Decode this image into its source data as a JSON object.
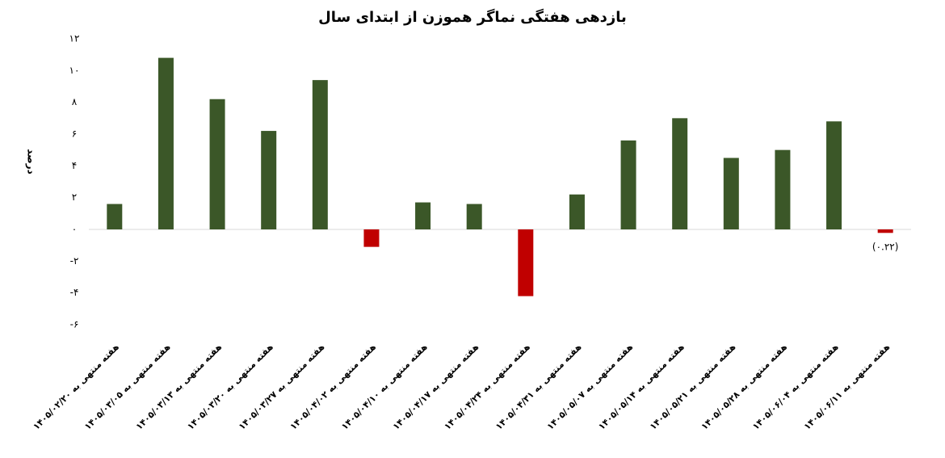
{
  "chart_data": {
    "type": "bar",
    "title": "بازدهی هفتگی نماگر هموزن از ابتدای سال",
    "y_label": "درصد",
    "categories": [
      "هفته منتهی به ۱۴۰۵/۰۲/۲۰",
      "هفته منتهی به ۱۴۰۵/۰۳/۰۵",
      "هفته منتهی به ۱۴۰۵/۰۳/۱۳",
      "هفته منتهی به ۱۴۰۵/۰۳/۲۰",
      "هفته منتهی به ۱۴۰۵/۰۳/۲۷",
      "هفته منتهی به ۱۴۰۵/۰۴/۰۲",
      "هفته منتهی به ۱۴۰۵/۰۴/۱۰",
      "هفته منتهی به ۱۴۰۵/۰۴/۱۷",
      "هفته منتهی به ۱۴۰۵/۰۴/۲۴",
      "هفته منتهی به ۱۴۰۵/۰۴/۳۱",
      "هفته منتهی به ۱۴۰۵/۰۵/۰۷",
      "هفته منتهی به ۱۴۰۵/۰۵/۱۴",
      "هفته منتهی به ۱۴۰۵/۰۵/۲۱",
      "هفته منتهی به ۱۴۰۵/۰۵/۲۸",
      "هفته منتهی به ۱۴۰۵/۰۶/۰۴",
      "هفته منتهی به ۱۴۰۵/۰۶/۱۱"
    ],
    "values": [
      1.6,
      10.8,
      8.2,
      6.2,
      9.4,
      -1.1,
      1.7,
      1.6,
      -4.2,
      2.2,
      5.6,
      7.0,
      4.5,
      5.0,
      6.8,
      -0.22
    ],
    "colors": [
      "#3b5728",
      "#3b5728",
      "#3b5728",
      "#3b5728",
      "#3b5728",
      "#c00000",
      "#3b5728",
      "#3b5728",
      "#c00000",
      "#3b5728",
      "#3b5728",
      "#3b5728",
      "#3b5728",
      "#3b5728",
      "#3b5728",
      "#c00000"
    ],
    "value_labels": [
      null,
      null,
      null,
      null,
      null,
      null,
      null,
      null,
      null,
      null,
      null,
      null,
      null,
      null,
      null,
      "(۰.۲۲)"
    ],
    "ylim": [
      -6,
      12
    ],
    "yticks": [
      {
        "value": -6,
        "label": "-۶"
      },
      {
        "value": -4,
        "label": "-۴"
      },
      {
        "value": -2,
        "label": "-۲"
      },
      {
        "value": 0,
        "label": "۰"
      },
      {
        "value": 2,
        "label": "۲"
      },
      {
        "value": 4,
        "label": "۴"
      },
      {
        "value": 6,
        "label": "۶"
      },
      {
        "value": 8,
        "label": "۸"
      },
      {
        "value": 10,
        "label": "۱۰"
      },
      {
        "value": 12,
        "label": "۱۲"
      }
    ],
    "grid": false
  }
}
